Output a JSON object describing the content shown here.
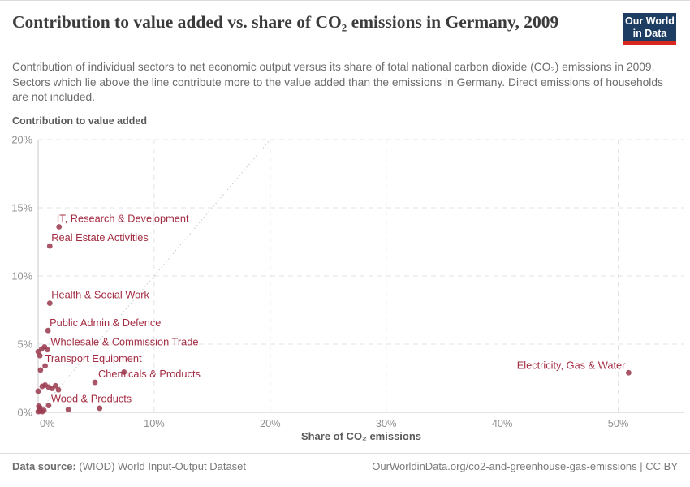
{
  "header": {
    "title": "Contribution to value added vs. share of CO₂ emissions in Germany, 2009",
    "subtitle": "Contribution of individual sectors to net economic output versus its share of total national carbon dioxide (CO₂) emissions in 2009. Sectors which lie above the line contribute more to the value added than the emissions in Germany. Direct emissions of households are not included.",
    "logo": {
      "line1": "Our World",
      "line2": "in Data"
    }
  },
  "footer": {
    "datasource_label": "Data source:",
    "datasource_value": " (WIOD) World Input-Output Dataset",
    "attribution": "OurWorldinData.org/co2-and-greenhouse-gas-emissions | CC BY"
  },
  "colors": {
    "dot": "#9b3d52",
    "sector_label": "#a32c42",
    "logo_navy": "#1d3d63",
    "logo_red": "#d7281f"
  },
  "chart_data": {
    "type": "scatter",
    "title": "Contribution to value added vs. share of CO₂ emissions in Germany, 2009",
    "xlabel": "Share of CO₂ emissions",
    "ylabel": "Contribution to value added",
    "xlim": [
      0,
      55.7
    ],
    "ylim": [
      0,
      20
    ],
    "x_ticks": [
      0,
      10,
      20,
      30,
      40,
      50
    ],
    "y_ticks": [
      0,
      5,
      10,
      15,
      20
    ],
    "tick_suffix": "%",
    "grid": "dashed",
    "legend": "none",
    "identity_line": true,
    "points": [
      {
        "sector": "IT, Research & Development",
        "x": 1.8,
        "y": 13.6,
        "anchor": "start",
        "label_offset": [
          -3,
          -6
        ]
      },
      {
        "sector": "Real Estate Activities",
        "x": 1.0,
        "y": 12.2,
        "anchor": "start",
        "label_offset": [
          2,
          -6
        ]
      },
      {
        "sector": "Health & Social Work",
        "x": 1.0,
        "y": 8.0,
        "anchor": "start",
        "label_offset": [
          2,
          -6
        ]
      },
      {
        "sector": "Public Admin & Defence",
        "x": 0.85,
        "y": 6.0,
        "anchor": "start",
        "label_offset": [
          2,
          -5
        ]
      },
      {
        "sector": "Wholesale & Commission Trade",
        "x": 0.8,
        "y": 4.6,
        "anchor": "start",
        "label_offset": [
          4,
          -5
        ]
      },
      {
        "sector": "Transport Equipment",
        "x": 0.6,
        "y": 3.4,
        "anchor": "start",
        "label_offset": [
          0,
          -5
        ]
      },
      {
        "sector": "Chemicals & Products",
        "x": 4.9,
        "y": 2.2,
        "anchor": "start",
        "label_offset": [
          4,
          -6
        ]
      },
      {
        "sector": "Wood & Products",
        "x": 0.9,
        "y": 0.5,
        "anchor": "start",
        "label_offset": [
          3,
          -4
        ]
      },
      {
        "sector": "Electricity, Gas & Water",
        "x": 50.9,
        "y": 2.9,
        "anchor": "end",
        "label_offset": [
          -4,
          -5
        ]
      }
    ],
    "unlabeled_points": [
      {
        "x": 0.0,
        "y": 4.45
      },
      {
        "x": 0.3,
        "y": 4.65
      },
      {
        "x": 0.55,
        "y": 4.8
      },
      {
        "x": 0.15,
        "y": 4.15
      },
      {
        "x": 0.2,
        "y": 3.1
      },
      {
        "x": 0.0,
        "y": 1.55
      },
      {
        "x": 0.35,
        "y": 1.9
      },
      {
        "x": 0.6,
        "y": 2.0
      },
      {
        "x": 0.9,
        "y": 1.85
      },
      {
        "x": 1.2,
        "y": 1.75
      },
      {
        "x": 1.5,
        "y": 1.95
      },
      {
        "x": 1.75,
        "y": 1.65
      },
      {
        "x": 0.05,
        "y": 0.45
      },
      {
        "x": 0.1,
        "y": 0.25
      },
      {
        "x": 0.2,
        "y": 0.1
      },
      {
        "x": 0.35,
        "y": 0.05
      },
      {
        "x": 0.0,
        "y": 0.05
      },
      {
        "x": 0.5,
        "y": 0.15
      },
      {
        "x": 0.15,
        "y": 0.35
      },
      {
        "x": 2.6,
        "y": 0.2
      },
      {
        "x": 5.3,
        "y": 0.3
      },
      {
        "x": 7.4,
        "y": 2.95
      }
    ]
  }
}
